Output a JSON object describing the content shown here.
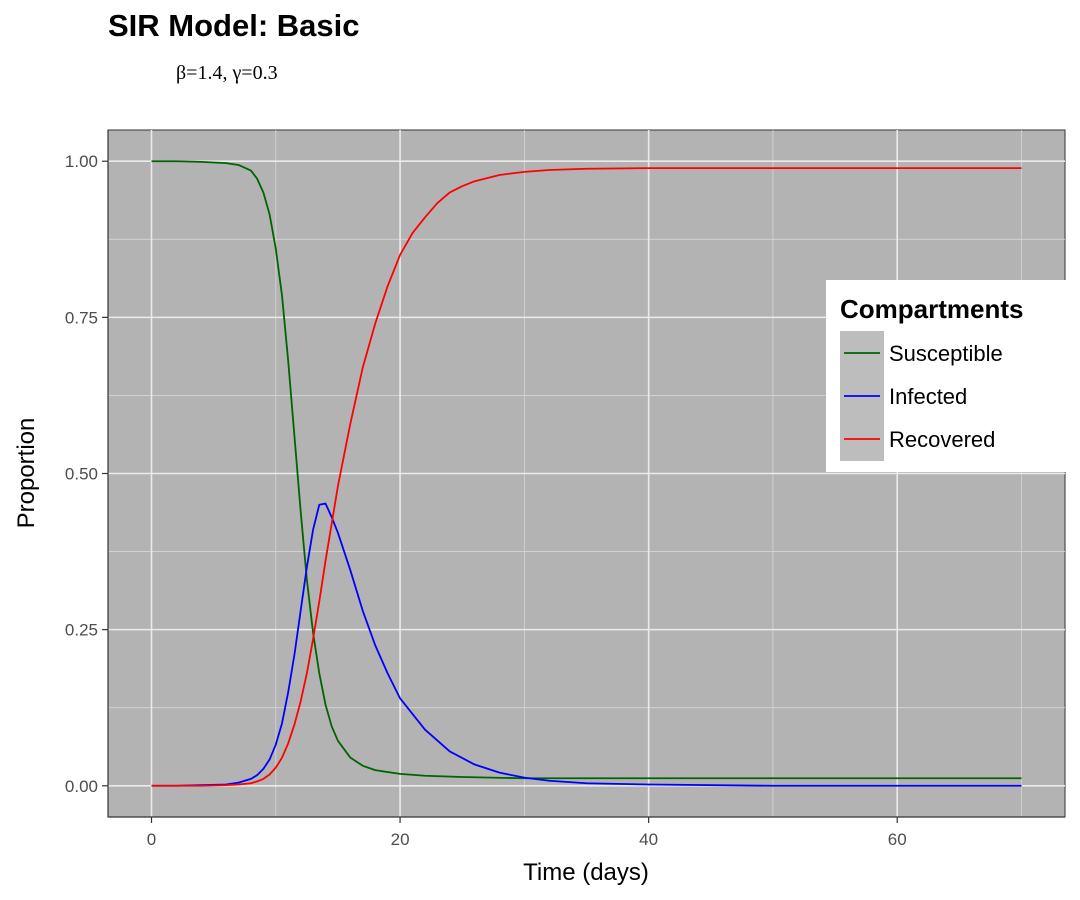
{
  "chart_data": {
    "type": "line",
    "title": "SIR Model: Basic",
    "subtitle": "β=1.4,  γ=0.3",
    "xlabel": "Time (days)",
    "ylabel": "Proportion",
    "xlim": [
      -3.5,
      73.5
    ],
    "ylim": [
      -0.05,
      1.05
    ],
    "x_ticks": [
      0,
      20,
      40,
      60
    ],
    "y_ticks": [
      0.0,
      0.25,
      0.5,
      0.75,
      1.0
    ],
    "x_tick_labels": [
      "0",
      "20",
      "40",
      "60"
    ],
    "y_tick_labels": [
      "0.00",
      "0.25",
      "0.50",
      "0.75",
      "1.00"
    ],
    "grid": true,
    "panel_background": "#b3b3b3",
    "legend": {
      "title": "Compartments",
      "position": "right-inside"
    },
    "series": [
      {
        "name": "Susceptible",
        "color": "#006400",
        "x": [
          0,
          2,
          4,
          6,
          7,
          8,
          8.5,
          9,
          9.5,
          10,
          10.5,
          11,
          11.5,
          12,
          12.5,
          13,
          13.5,
          14,
          14.5,
          15,
          16,
          17,
          18,
          20,
          22,
          25,
          30,
          40,
          50,
          60,
          70
        ],
        "y": [
          1.0,
          1.0,
          0.999,
          0.997,
          0.994,
          0.985,
          0.972,
          0.95,
          0.915,
          0.86,
          0.785,
          0.68,
          0.56,
          0.44,
          0.33,
          0.245,
          0.18,
          0.13,
          0.095,
          0.072,
          0.045,
          0.032,
          0.025,
          0.019,
          0.016,
          0.014,
          0.012,
          0.012,
          0.012,
          0.012,
          0.012
        ]
      },
      {
        "name": "Infected",
        "color": "#0000ff",
        "x": [
          0,
          2,
          4,
          6,
          7,
          8,
          8.5,
          9,
          9.5,
          10,
          10.5,
          11,
          11.5,
          12,
          12.5,
          13,
          13.5,
          14,
          14.5,
          15,
          16,
          17,
          18,
          19,
          20,
          22,
          24,
          26,
          28,
          30,
          32,
          35,
          40,
          50,
          60,
          70
        ],
        "y": [
          0.0,
          0.0,
          0.001,
          0.002,
          0.005,
          0.011,
          0.017,
          0.027,
          0.042,
          0.066,
          0.1,
          0.15,
          0.21,
          0.28,
          0.35,
          0.41,
          0.45,
          0.452,
          0.43,
          0.405,
          0.345,
          0.28,
          0.225,
          0.18,
          0.14,
          0.09,
          0.055,
          0.034,
          0.021,
          0.013,
          0.008,
          0.004,
          0.002,
          0.0,
          0.0,
          0.0
        ]
      },
      {
        "name": "Recovered",
        "color": "#ff0000",
        "x": [
          0,
          2,
          4,
          6,
          7,
          8,
          8.5,
          9,
          9.5,
          10,
          10.5,
          11,
          11.5,
          12,
          12.5,
          13,
          13.5,
          14,
          14.5,
          15,
          16,
          17,
          18,
          19,
          20,
          21,
          22,
          23,
          24,
          25,
          26,
          28,
          30,
          32,
          35,
          40,
          50,
          60,
          70
        ],
        "y": [
          0.0,
          0.0,
          0.0,
          0.001,
          0.002,
          0.004,
          0.007,
          0.011,
          0.018,
          0.029,
          0.045,
          0.068,
          0.098,
          0.135,
          0.18,
          0.235,
          0.295,
          0.36,
          0.42,
          0.48,
          0.58,
          0.67,
          0.74,
          0.8,
          0.85,
          0.885,
          0.91,
          0.933,
          0.95,
          0.96,
          0.968,
          0.978,
          0.983,
          0.986,
          0.988,
          0.989,
          0.989,
          0.989,
          0.989
        ]
      }
    ]
  }
}
